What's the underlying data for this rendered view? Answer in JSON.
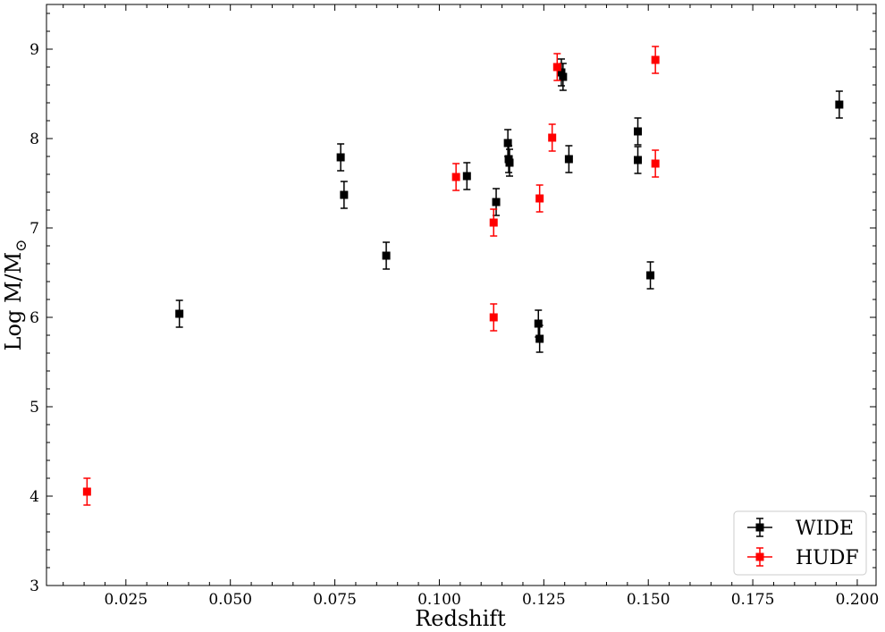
{
  "chart_data": {
    "type": "scatter",
    "xlabel": "Redshift",
    "ylabel": "Log M/M",
    "ylabel_symbol": "⊙",
    "xlim": [
      0.006,
      0.2045
    ],
    "ylim": [
      3,
      9.5
    ],
    "xticks": [
      0.025,
      0.05,
      0.075,
      0.1,
      0.125,
      0.15,
      0.175,
      0.2
    ],
    "xtick_labels": [
      "0.025",
      "0.050",
      "0.075",
      "0.100",
      "0.125",
      "0.150",
      "0.175",
      "0.200"
    ],
    "yticks": [
      3,
      4,
      5,
      6,
      7,
      8,
      9
    ],
    "ytick_labels": [
      "3",
      "4",
      "5",
      "6",
      "7",
      "8",
      "9"
    ],
    "grid": false,
    "legend_position": "bottom-right",
    "marker": "square",
    "series": [
      {
        "name": "WIDE",
        "color": "#000000",
        "points": [
          {
            "x": 0.0378,
            "y": 6.04,
            "err": 0.15
          },
          {
            "x": 0.0764,
            "y": 7.79,
            "err": 0.15
          },
          {
            "x": 0.0772,
            "y": 7.37,
            "err": 0.15
          },
          {
            "x": 0.0873,
            "y": 6.69,
            "err": 0.15
          },
          {
            "x": 0.1066,
            "y": 7.58,
            "err": 0.15
          },
          {
            "x": 0.1136,
            "y": 7.29,
            "err": 0.15
          },
          {
            "x": 0.1164,
            "y": 7.95,
            "err": 0.15
          },
          {
            "x": 0.1166,
            "y": 7.77,
            "err": 0.15
          },
          {
            "x": 0.1168,
            "y": 7.73,
            "err": 0.15
          },
          {
            "x": 0.1237,
            "y": 5.93,
            "err": 0.15
          },
          {
            "x": 0.124,
            "y": 5.76,
            "err": 0.15
          },
          {
            "x": 0.1292,
            "y": 8.74,
            "err": 0.15
          },
          {
            "x": 0.1296,
            "y": 8.69,
            "err": 0.15
          },
          {
            "x": 0.131,
            "y": 7.77,
            "err": 0.15
          },
          {
            "x": 0.1475,
            "y": 8.08,
            "err": 0.15
          },
          {
            "x": 0.1475,
            "y": 7.76,
            "err": 0.15
          },
          {
            "x": 0.1505,
            "y": 6.47,
            "err": 0.15
          },
          {
            "x": 0.1957,
            "y": 8.38,
            "err": 0.15
          }
        ]
      },
      {
        "name": "HUDF",
        "color": "#ff0000",
        "points": [
          {
            "x": 0.0157,
            "y": 4.05,
            "err": 0.15
          },
          {
            "x": 0.104,
            "y": 7.57,
            "err": 0.15
          },
          {
            "x": 0.113,
            "y": 7.06,
            "err": 0.15
          },
          {
            "x": 0.113,
            "y": 6.0,
            "err": 0.15
          },
          {
            "x": 0.124,
            "y": 7.33,
            "err": 0.15
          },
          {
            "x": 0.127,
            "y": 8.01,
            "err": 0.15
          },
          {
            "x": 0.1282,
            "y": 8.8,
            "err": 0.15
          },
          {
            "x": 0.1517,
            "y": 8.88,
            "err": 0.15
          },
          {
            "x": 0.1517,
            "y": 7.72,
            "err": 0.15
          }
        ]
      }
    ]
  }
}
